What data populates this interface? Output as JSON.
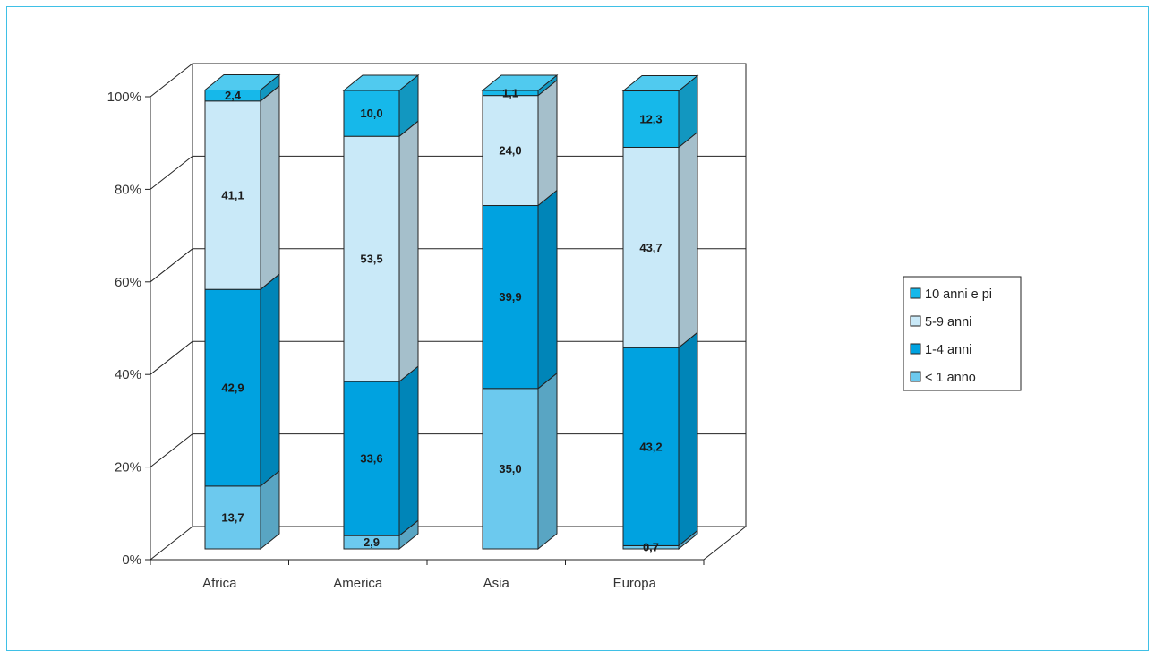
{
  "chart_data": {
    "type": "bar",
    "stacked": true,
    "three_d": true,
    "categories": [
      "Africa",
      "America",
      "Asia",
      "Europa"
    ],
    "series": [
      {
        "name": "< 1 anno",
        "values": [
          13.7,
          2.9,
          35.0,
          0.7
        ],
        "labels": [
          "13,7",
          "2,9",
          "35,0",
          "0,7"
        ],
        "color": "#6cc9ee"
      },
      {
        "name": "1-4 anni",
        "values": [
          42.9,
          33.6,
          39.9,
          43.2
        ],
        "labels": [
          "42,9",
          "33,6",
          "39,9",
          "43,2"
        ],
        "color": "#00a2e0"
      },
      {
        "name": "5-9 anni",
        "values": [
          41.1,
          53.5,
          24.0,
          43.7
        ],
        "labels": [
          "41,1",
          "53,5",
          "24,0",
          "43,7"
        ],
        "color": "#c9e9f8"
      },
      {
        "name": "10 anni e pi",
        "values": [
          2.4,
          10.0,
          1.1,
          12.3
        ],
        "labels": [
          "2,4",
          "10,0",
          "1,1",
          "12,3"
        ],
        "color": "#16b8ea"
      }
    ],
    "yticks": [
      "0%",
      "20%",
      "40%",
      "60%",
      "80%",
      "100%"
    ],
    "ylim": [
      0,
      100
    ],
    "title": "",
    "xlabel": "",
    "ylabel": "",
    "grid": true,
    "legend_position": "right"
  }
}
